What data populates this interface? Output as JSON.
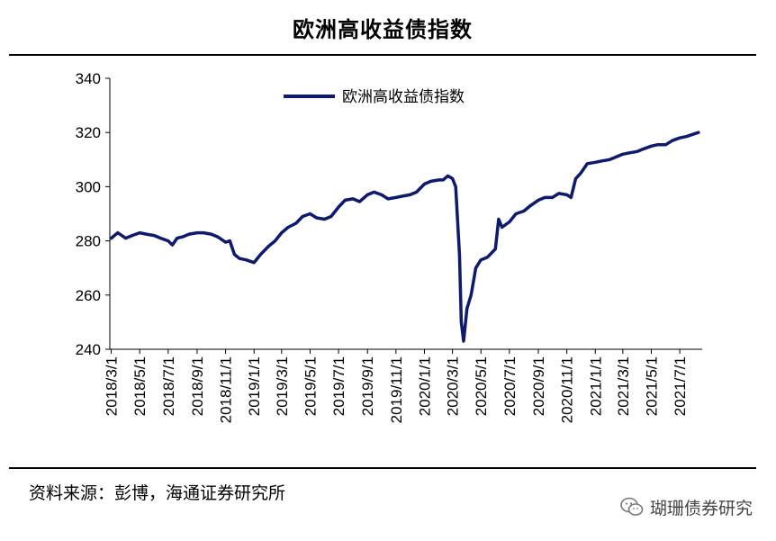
{
  "chart_data": {
    "type": "line",
    "title": "欧洲高收益债指数",
    "xlabel": "",
    "ylabel": "",
    "ylim": [
      240,
      340
    ],
    "yticks": [
      240,
      260,
      280,
      300,
      320,
      340
    ],
    "x_tick_labels": [
      "2018/3/1",
      "2018/5/1",
      "2018/7/1",
      "2018/9/1",
      "2018/11/1",
      "2019/1/1",
      "2019/3/1",
      "2019/5/1",
      "2019/7/1",
      "2019/9/1",
      "2019/11/1",
      "2020/1/1",
      "2020/3/1",
      "2020/5/1",
      "2020/7/1",
      "2020/9/1",
      "2020/11/1",
      "2021/1/1",
      "2021/3/1",
      "2021/5/1",
      "2021/7/1"
    ],
    "legend": {
      "position": "top-center",
      "entries": [
        "欧洲高收益债指数"
      ]
    },
    "grid": false,
    "line_color": "#0d1a6e",
    "series": [
      {
        "name": "欧洲高收益债指数",
        "x": [
          "2018-03-01",
          "2018-03-15",
          "2018-04-01",
          "2018-04-15",
          "2018-05-01",
          "2018-05-15",
          "2018-06-01",
          "2018-06-15",
          "2018-07-01",
          "2018-07-10",
          "2018-07-20",
          "2018-08-01",
          "2018-08-15",
          "2018-09-01",
          "2018-09-15",
          "2018-10-01",
          "2018-10-15",
          "2018-11-01",
          "2018-11-10",
          "2018-11-20",
          "2018-12-01",
          "2018-12-15",
          "2019-01-01",
          "2019-01-15",
          "2019-02-01",
          "2019-02-15",
          "2019-03-01",
          "2019-03-15",
          "2019-04-01",
          "2019-04-15",
          "2019-05-01",
          "2019-05-15",
          "2019-06-01",
          "2019-06-15",
          "2019-07-01",
          "2019-07-15",
          "2019-08-01",
          "2019-08-15",
          "2019-09-01",
          "2019-09-15",
          "2019-10-01",
          "2019-10-15",
          "2019-11-01",
          "2019-11-15",
          "2019-12-01",
          "2019-12-15",
          "2020-01-01",
          "2020-01-15",
          "2020-02-01",
          "2020-02-10",
          "2020-02-20",
          "2020-03-01",
          "2020-03-08",
          "2020-03-16",
          "2020-03-20",
          "2020-03-25",
          "2020-04-01",
          "2020-04-10",
          "2020-04-20",
          "2020-05-01",
          "2020-05-15",
          "2020-06-01",
          "2020-06-08",
          "2020-06-15",
          "2020-07-01",
          "2020-07-15",
          "2020-08-01",
          "2020-08-15",
          "2020-09-01",
          "2020-09-15",
          "2020-10-01",
          "2020-10-15",
          "2020-11-01",
          "2020-11-10",
          "2020-11-20",
          "2020-12-01",
          "2020-12-15",
          "2021-01-01",
          "2021-01-15",
          "2021-02-01",
          "2021-02-15",
          "2021-03-01",
          "2021-03-15",
          "2021-04-01",
          "2021-04-15",
          "2021-05-01",
          "2021-05-15",
          "2021-06-01",
          "2021-06-15",
          "2021-07-01",
          "2021-07-15",
          "2021-08-01",
          "2021-08-10"
        ],
        "values": [
          281,
          283,
          281,
          282,
          283,
          282.5,
          282,
          281,
          280,
          278.5,
          281,
          281.5,
          282.5,
          283,
          283,
          282.5,
          281.5,
          279.5,
          280,
          275,
          273.5,
          273,
          272,
          275,
          278,
          280,
          283,
          285,
          286.5,
          289,
          290,
          288.5,
          288,
          289,
          292.5,
          295,
          295.5,
          294.5,
          297,
          298,
          297,
          295.5,
          296,
          296.5,
          297,
          298,
          301,
          302,
          302.5,
          302.5,
          304,
          303,
          300,
          275,
          250,
          243,
          255,
          260,
          270,
          273,
          274,
          277,
          288,
          285,
          287,
          290,
          291,
          293,
          295,
          296,
          296,
          297.5,
          297,
          296,
          303,
          305,
          308.5,
          309,
          309.5,
          310,
          311,
          312,
          312.5,
          313,
          314,
          315,
          315.5,
          315.5,
          317,
          318,
          318.5,
          319.5,
          320
        ]
      }
    ]
  },
  "footer": {
    "source": "资料来源：彭博，海通证券研究所",
    "watermark_icon": "wechat-icon",
    "watermark_text": "瑚珊债券研究"
  }
}
